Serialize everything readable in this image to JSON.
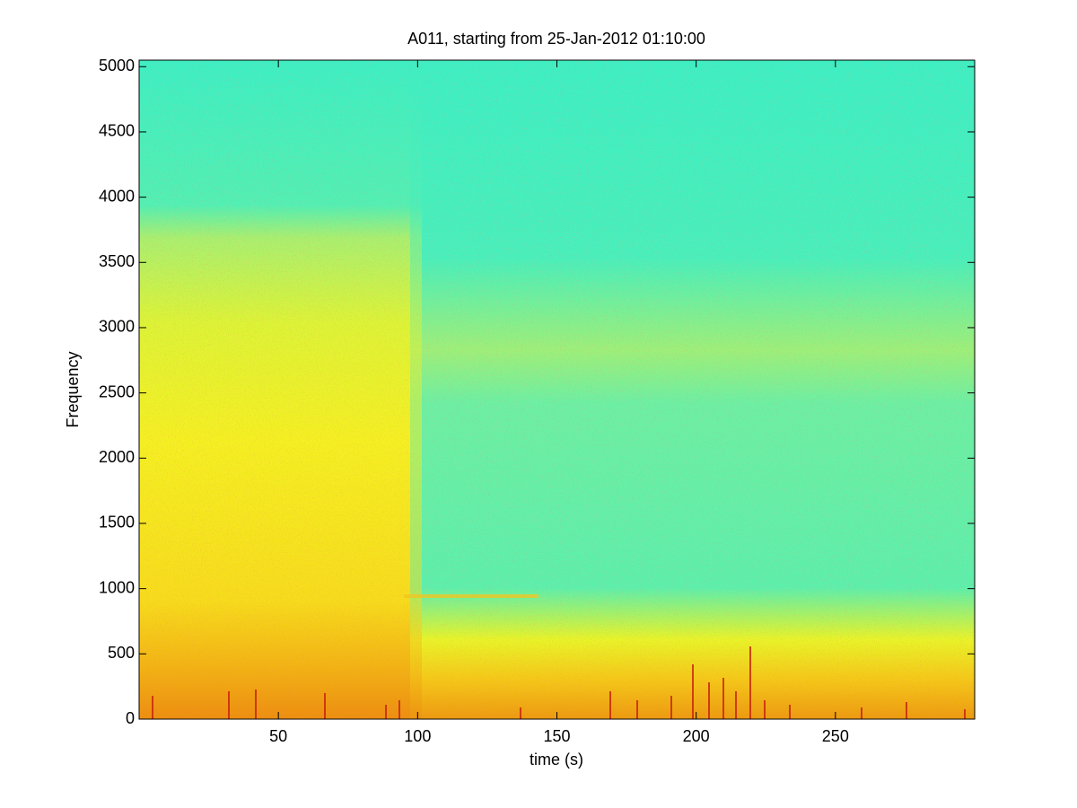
{
  "chart_data": {
    "type": "spectrogram",
    "title": "A011, starting from 25-Jan-2012 01:10:00",
    "x_label": "time (s)",
    "y_label": "Frequency",
    "xlim": [
      0,
      300
    ],
    "ylim": [
      0,
      5050
    ],
    "xticks": [
      50,
      100,
      150,
      200,
      250
    ],
    "yticks": [
      0,
      500,
      1000,
      1500,
      2000,
      2500,
      3000,
      3500,
      4000,
      4500,
      5000
    ]
  }
}
